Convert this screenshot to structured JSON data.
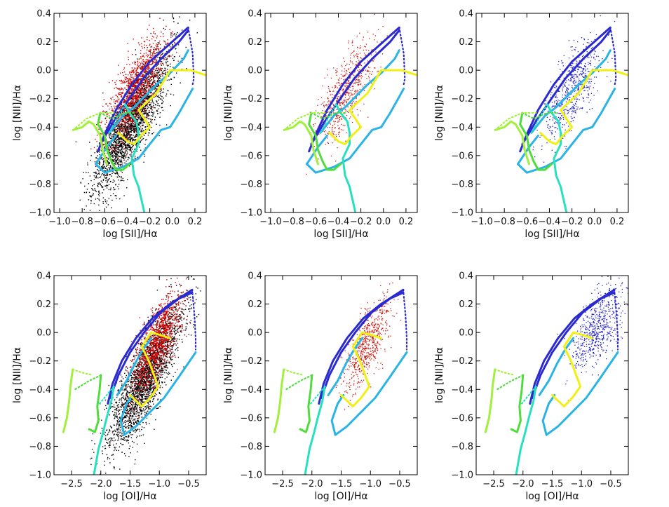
{
  "figure": {
    "description_free": true,
    "colors": {
      "axes": "#000000",
      "all_points_black": "#000000",
      "all_points_red": "#e00000",
      "red_subset": "#cc1a10",
      "blue_subset": "#2020c8",
      "grid_blue": "#2a2ad0",
      "grid_light_blue": "#2ab4e6",
      "grid_cyan": "#28e0c0",
      "grid_green": "#50dc3c",
      "grid_lime": "#a0f03c",
      "grid_yellow": "#f0f014"
    }
  },
  "chart_data": [
    {
      "type": "scatter",
      "panel": "row1-col1",
      "xlabel": "log [SII]/Hα",
      "ylabel": "log [NII]/Hα",
      "xlim": [
        -1.05,
        0.3
      ],
      "ylim": [
        -1.0,
        0.4
      ],
      "xticks": [
        -1.0,
        -0.8,
        -0.6,
        -0.4,
        -0.2,
        0.0,
        0.2
      ],
      "xtick_labels": [
        "−1.0",
        "−0.8",
        "−0.6",
        "−0.4",
        "−0.2",
        "0.0",
        "0.2"
      ],
      "yticks": [
        -1.0,
        -0.8,
        -0.6,
        -0.4,
        -0.2,
        0.0,
        0.2,
        0.4
      ],
      "ytick_labels": [
        "−1.0",
        "−0.8",
        "−0.6",
        "−0.4",
        "−0.2",
        "0.0",
        "0.2",
        "0.4"
      ],
      "scatter_mode": "all",
      "grid": "sii"
    },
    {
      "type": "scatter",
      "panel": "row1-col2",
      "xlabel": "log [SII]/Hα",
      "ylabel": "log [NII]/Hα",
      "xlim": [
        -1.05,
        0.3
      ],
      "ylim": [
        -1.0,
        0.4
      ],
      "xticks": [
        -1.0,
        -0.8,
        -0.6,
        -0.4,
        -0.2,
        0.0,
        0.2
      ],
      "xtick_labels": [
        "−1.0",
        "−0.8",
        "−0.6",
        "−0.4",
        "−0.2",
        "0.0",
        "0.2"
      ],
      "yticks": [
        -1.0,
        -0.8,
        -0.6,
        -0.4,
        -0.2,
        0.0,
        0.2,
        0.4
      ],
      "ytick_labels": [
        "−1.0",
        "−0.8",
        "−0.6",
        "−0.4",
        "−0.2",
        "0.0",
        "0.2",
        "0.4"
      ],
      "scatter_mode": "red",
      "grid": "sii"
    },
    {
      "type": "scatter",
      "panel": "row1-col3",
      "xlabel": "log [SII]/Hα",
      "ylabel": "log [NII]/Hα",
      "xlim": [
        -1.05,
        0.3
      ],
      "ylim": [
        -1.0,
        0.4
      ],
      "xticks": [
        -1.0,
        -0.8,
        -0.6,
        -0.4,
        -0.2,
        0.0,
        0.2
      ],
      "xtick_labels": [
        "−1.0",
        "−0.8",
        "−0.6",
        "−0.4",
        "−0.2",
        "0.0",
        "0.2"
      ],
      "yticks": [
        -1.0,
        -0.8,
        -0.6,
        -0.4,
        -0.2,
        0.0,
        0.2,
        0.4
      ],
      "ytick_labels": [
        "−1.0",
        "−0.8",
        "−0.6",
        "−0.4",
        "−0.2",
        "0.0",
        "0.2",
        "0.4"
      ],
      "scatter_mode": "blue",
      "grid": "sii"
    },
    {
      "type": "scatter",
      "panel": "row2-col1",
      "xlabel": "log [OI]/Hα",
      "ylabel": "log [NII]/Hα",
      "xlim": [
        -2.8,
        -0.2
      ],
      "ylim": [
        -1.0,
        0.4
      ],
      "xticks": [
        -2.5,
        -2.0,
        -1.5,
        -1.0,
        -0.5
      ],
      "xtick_labels": [
        "−2.5",
        "−2.0",
        "−1.5",
        "−1.0",
        "−0.5"
      ],
      "yticks": [
        -1.0,
        -0.8,
        -0.6,
        -0.4,
        -0.2,
        0.0,
        0.2,
        0.4
      ],
      "ytick_labels": [
        "−1.0",
        "−0.8",
        "−0.6",
        "−0.4",
        "−0.2",
        "0.0",
        "0.2",
        "0.4"
      ],
      "scatter_mode": "all",
      "grid": "oi"
    },
    {
      "type": "scatter",
      "panel": "row2-col2",
      "xlabel": "log [OI]/Hα",
      "ylabel": "log [NII]/Hα",
      "xlim": [
        -2.8,
        -0.2
      ],
      "ylim": [
        -1.0,
        0.4
      ],
      "xticks": [
        -2.5,
        -2.0,
        -1.5,
        -1.0,
        -0.5
      ],
      "xtick_labels": [
        "−2.5",
        "−2.0",
        "−1.5",
        "−1.0",
        "−0.5"
      ],
      "yticks": [
        -1.0,
        -0.8,
        -0.6,
        -0.4,
        -0.2,
        0.0,
        0.2,
        0.4
      ],
      "ytick_labels": [
        "−1.0",
        "−0.8",
        "−0.6",
        "−0.4",
        "−0.2",
        "0.0",
        "0.2",
        "0.4"
      ],
      "scatter_mode": "red",
      "grid": "oi"
    },
    {
      "type": "scatter",
      "panel": "row2-col3",
      "xlabel": "log [OI]/Hα",
      "ylabel": "log [NII]/Hα",
      "xlim": [
        -2.8,
        -0.2
      ],
      "ylim": [
        -1.0,
        0.4
      ],
      "xticks": [
        -2.5,
        -2.0,
        -1.5,
        -1.0,
        -0.5
      ],
      "xtick_labels": [
        "−2.5",
        "−2.0",
        "−1.5",
        "−1.0",
        "−0.5"
      ],
      "yticks": [
        -1.0,
        -0.8,
        -0.6,
        -0.4,
        -0.2,
        0.0,
        0.2,
        0.4
      ],
      "ytick_labels": [
        "−1.0",
        "−0.8",
        "−0.6",
        "−0.4",
        "−0.2",
        "0.0",
        "0.2",
        "0.4"
      ],
      "scatter_mode": "blue",
      "grid": "oi"
    }
  ],
  "model_grids": {
    "sii": [
      {
        "color": "grid_blue",
        "dash": false,
        "points": [
          [
            -0.66,
            -0.57
          ],
          [
            -0.6,
            -0.45
          ],
          [
            -0.5,
            -0.28
          ],
          [
            -0.36,
            -0.1
          ],
          [
            -0.2,
            0.06
          ],
          [
            -0.03,
            0.18
          ],
          [
            0.14,
            0.3
          ]
        ]
      },
      {
        "color": "grid_blue",
        "dash": false,
        "points": [
          [
            -0.64,
            -0.52
          ],
          [
            -0.52,
            -0.36
          ],
          [
            -0.4,
            -0.22
          ],
          [
            -0.26,
            -0.06
          ],
          [
            -0.1,
            0.08
          ],
          [
            0.06,
            0.2
          ],
          [
            0.14,
            0.28
          ]
        ]
      },
      {
        "color": "grid_blue",
        "dash": true,
        "points": [
          [
            0.14,
            0.3
          ],
          [
            0.18,
            0.12
          ],
          [
            0.19,
            -0.06
          ],
          [
            0.18,
            -0.1
          ]
        ]
      },
      {
        "color": "grid_light_blue",
        "dash": false,
        "points": [
          [
            -0.56,
            -0.44
          ],
          [
            -0.44,
            -0.32
          ],
          [
            -0.34,
            -0.26
          ],
          [
            -0.24,
            -0.18
          ],
          [
            -0.14,
            -0.1
          ],
          [
            -0.02,
            -0.02
          ],
          [
            0.1,
            0.08
          ],
          [
            0.14,
            0.14
          ]
        ]
      },
      {
        "color": "grid_light_blue",
        "dash": false,
        "points": [
          [
            -0.68,
            -0.66
          ],
          [
            -0.6,
            -0.72
          ],
          [
            -0.44,
            -0.68
          ],
          [
            -0.3,
            -0.62
          ],
          [
            -0.2,
            -0.52
          ],
          [
            -0.1,
            -0.42
          ],
          [
            -0.02,
            -0.4
          ],
          [
            0.06,
            -0.3
          ],
          [
            0.18,
            -0.13
          ]
        ]
      },
      {
        "color": "grid_light_blue",
        "dash": false,
        "points": [
          [
            -0.68,
            -0.66
          ],
          [
            -0.58,
            -0.54
          ],
          [
            -0.5,
            -0.46
          ]
        ]
      },
      {
        "color": "grid_cyan",
        "dash": false,
        "points": [
          [
            -0.42,
            -0.24
          ],
          [
            -0.38,
            -0.3
          ],
          [
            -0.32,
            -0.36
          ],
          [
            -0.3,
            -0.44
          ],
          [
            -0.3,
            -0.52
          ],
          [
            -0.36,
            -0.62
          ],
          [
            -0.34,
            -0.74
          ],
          [
            -0.3,
            -0.82
          ],
          [
            -0.26,
            -0.96
          ],
          [
            -0.22,
            -1.1
          ]
        ]
      },
      {
        "color": "grid_cyan",
        "dash": true,
        "points": [
          [
            -0.42,
            -0.24
          ],
          [
            -0.48,
            -0.32
          ],
          [
            -0.56,
            -0.44
          ]
        ]
      },
      {
        "color": "grid_green",
        "dash": false,
        "points": [
          [
            -0.64,
            -0.3
          ],
          [
            -0.66,
            -0.38
          ],
          [
            -0.6,
            -0.46
          ],
          [
            -0.58,
            -0.56
          ],
          [
            -0.54,
            -0.64
          ],
          [
            -0.5,
            -0.7
          ],
          [
            -0.44,
            -0.7
          ],
          [
            -0.38,
            -0.66
          ]
        ]
      },
      {
        "color": "grid_green",
        "dash": true,
        "points": [
          [
            -0.64,
            -0.3
          ],
          [
            -0.54,
            -0.34
          ],
          [
            -0.42,
            -0.3
          ],
          [
            -0.34,
            -0.3
          ]
        ]
      },
      {
        "color": "grid_lime",
        "dash": false,
        "points": [
          [
            -0.88,
            -0.42
          ],
          [
            -0.8,
            -0.4
          ],
          [
            -0.74,
            -0.36
          ],
          [
            -0.7,
            -0.38
          ],
          [
            -0.64,
            -0.46
          ],
          [
            -0.62,
            -0.56
          ],
          [
            -0.58,
            -0.66
          ]
        ]
      },
      {
        "color": "grid_lime",
        "dash": true,
        "points": [
          [
            -0.88,
            -0.42
          ],
          [
            -0.76,
            -0.34
          ],
          [
            -0.64,
            -0.3
          ],
          [
            -0.52,
            -0.3
          ]
        ]
      },
      {
        "color": "grid_yellow",
        "dash": false,
        "points": [
          [
            -0.48,
            -0.44
          ],
          [
            -0.4,
            -0.5
          ],
          [
            -0.34,
            -0.52
          ],
          [
            -0.28,
            -0.46
          ],
          [
            -0.2,
            -0.4
          ],
          [
            -0.3,
            -0.28
          ],
          [
            -0.14,
            -0.16
          ],
          [
            -0.02,
            0.0
          ],
          [
            0.16,
            0.0
          ],
          [
            0.32,
            -0.04
          ]
        ]
      }
    ],
    "oi": [
      {
        "color": "grid_blue",
        "dash": false,
        "points": [
          [
            -1.88,
            -0.5
          ],
          [
            -1.8,
            -0.36
          ],
          [
            -1.64,
            -0.2
          ],
          [
            -1.4,
            -0.04
          ],
          [
            -1.12,
            0.1
          ],
          [
            -0.82,
            0.2
          ],
          [
            -0.44,
            0.3
          ]
        ]
      },
      {
        "color": "grid_blue",
        "dash": false,
        "points": [
          [
            -1.84,
            -0.46
          ],
          [
            -1.7,
            -0.3
          ],
          [
            -1.5,
            -0.14
          ],
          [
            -1.26,
            0.0
          ],
          [
            -0.98,
            0.14
          ],
          [
            -0.66,
            0.24
          ],
          [
            -0.44,
            0.28
          ]
        ]
      },
      {
        "color": "grid_blue",
        "dash": true,
        "points": [
          [
            -0.44,
            0.3
          ],
          [
            -0.4,
            0.12
          ],
          [
            -0.38,
            -0.04
          ],
          [
            -0.38,
            -0.12
          ]
        ]
      },
      {
        "color": "grid_light_blue",
        "dash": false,
        "points": [
          [
            -1.72,
            -0.44
          ],
          [
            -1.56,
            -0.34
          ],
          [
            -1.42,
            -0.22
          ],
          [
            -1.28,
            -0.12
          ],
          [
            -1.14,
            -0.04
          ]
        ]
      },
      {
        "color": "grid_light_blue",
        "dash": false,
        "points": [
          [
            -1.66,
            -0.62
          ],
          [
            -1.6,
            -0.72
          ],
          [
            -1.4,
            -0.66
          ],
          [
            -1.16,
            -0.56
          ],
          [
            -0.92,
            -0.46
          ],
          [
            -0.68,
            -0.32
          ],
          [
            -0.38,
            -0.14
          ]
        ]
      },
      {
        "color": "grid_light_blue",
        "dash": false,
        "points": [
          [
            -1.66,
            -0.62
          ],
          [
            -1.56,
            -0.5
          ],
          [
            -1.46,
            -0.44
          ]
        ]
      },
      {
        "color": "grid_cyan",
        "dash": false,
        "points": [
          [
            -1.78,
            -0.38
          ],
          [
            -1.82,
            -0.48
          ],
          [
            -1.9,
            -0.6
          ],
          [
            -1.96,
            -0.7
          ],
          [
            -2.04,
            -0.82
          ],
          [
            -2.1,
            -0.96
          ],
          [
            -2.16,
            -1.1
          ]
        ]
      },
      {
        "color": "grid_cyan",
        "dash": true,
        "points": [
          [
            -1.78,
            -0.38
          ],
          [
            -1.9,
            -0.44
          ],
          [
            -2.02,
            -0.5
          ]
        ]
      },
      {
        "color": "grid_green",
        "dash": false,
        "points": [
          [
            -2.0,
            -0.3
          ],
          [
            -2.02,
            -0.4
          ],
          [
            -2.06,
            -0.52
          ],
          [
            -2.04,
            -0.62
          ],
          [
            -2.1,
            -0.7
          ],
          [
            -2.2,
            -0.68
          ]
        ]
      },
      {
        "color": "grid_green",
        "dash": true,
        "points": [
          [
            -2.0,
            -0.3
          ],
          [
            -2.2,
            -0.34
          ],
          [
            -2.44,
            -0.4
          ]
        ]
      },
      {
        "color": "grid_lime",
        "dash": false,
        "points": [
          [
            -2.48,
            -0.26
          ],
          [
            -2.52,
            -0.38
          ],
          [
            -2.54,
            -0.48
          ],
          [
            -2.58,
            -0.6
          ],
          [
            -2.64,
            -0.7
          ]
        ]
      },
      {
        "color": "grid_lime",
        "dash": true,
        "points": [
          [
            -2.48,
            -0.26
          ],
          [
            -2.34,
            -0.28
          ],
          [
            -2.14,
            -0.3
          ]
        ]
      },
      {
        "color": "grid_yellow",
        "dash": false,
        "points": [
          [
            -1.5,
            -0.44
          ],
          [
            -1.3,
            -0.52
          ],
          [
            -1.16,
            -0.46
          ],
          [
            -1.02,
            -0.38
          ],
          [
            -1.18,
            -0.2
          ],
          [
            -1.3,
            -0.1
          ],
          [
            -1.14,
            0.0
          ],
          [
            -0.96,
            -0.02
          ],
          [
            -0.82,
            -0.04
          ]
        ]
      }
    ]
  }
}
